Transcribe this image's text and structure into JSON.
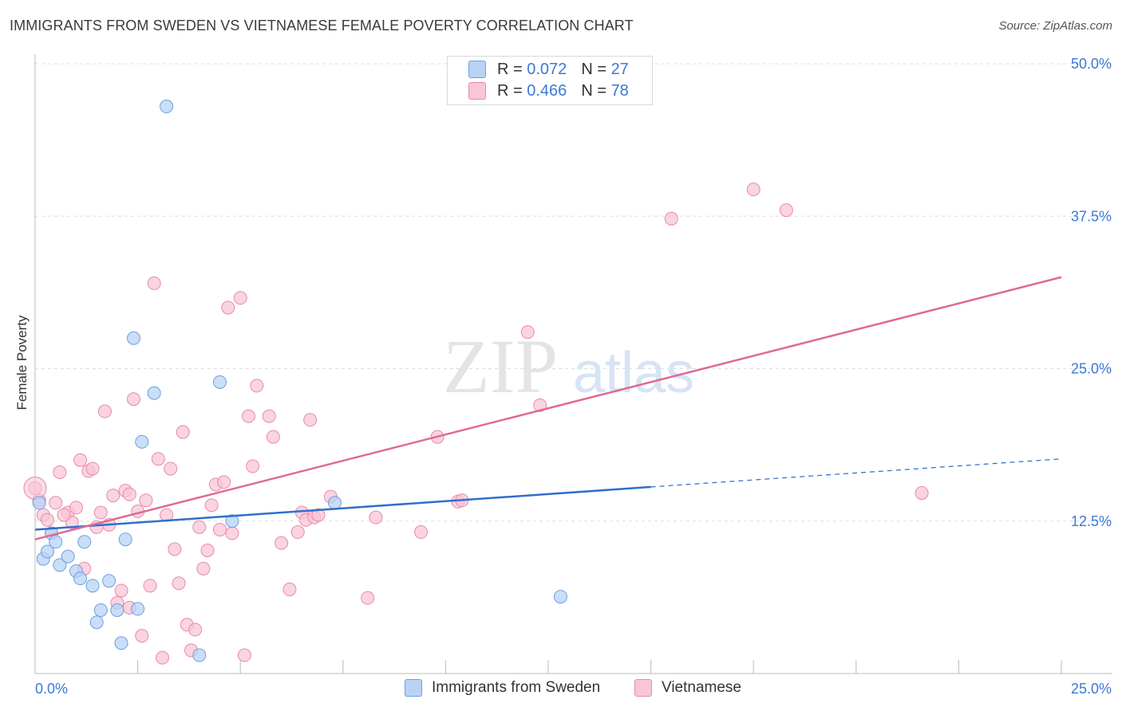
{
  "title": "IMMIGRANTS FROM SWEDEN VS VIETNAMESE FEMALE POVERTY CORRELATION CHART",
  "source": "Source: ZipAtlas.com",
  "watermark": {
    "zip": "ZIP",
    "atlas": "atlas"
  },
  "colors": {
    "sweden_fill": "#b8d3f5",
    "sweden_stroke": "#6d9fe0",
    "sweden_line": "#2f6fcc",
    "viet_fill": "#f8c6d6",
    "viet_stroke": "#e88aa8",
    "viet_line": "#e06a94",
    "tick_color": "#3c78d8",
    "grid": "#dddddd"
  },
  "legend": {
    "rows": [
      {
        "r_label": "R = ",
        "r_value": "0.072",
        "n_label": "N = ",
        "n_value": "27"
      },
      {
        "r_label": "R = ",
        "r_value": "0.466",
        "n_label": "N = ",
        "n_value": "78"
      }
    ]
  },
  "bottom_legend": [
    "Immigrants from Sweden",
    "Vietnamese"
  ],
  "chart_data": {
    "type": "scatter",
    "title": "IMMIGRANTS FROM SWEDEN VS VIETNAMESE FEMALE POVERTY CORRELATION CHART",
    "xlabel": "",
    "ylabel": "Female Poverty",
    "xlim": [
      0,
      25
    ],
    "ylim": [
      0,
      50
    ],
    "x_tick_labels": [
      "0.0%",
      "25.0%"
    ],
    "y_ticks": [
      12.5,
      25.0,
      37.5,
      50.0
    ],
    "y_tick_labels": [
      "12.5%",
      "25.0%",
      "37.5%",
      "50.0%"
    ],
    "series": [
      {
        "name": "Immigrants from Sweden",
        "trend": {
          "x": [
            0,
            15
          ],
          "y": [
            11.8,
            15.3
          ],
          "dashed_to": [
            25,
            17.6
          ]
        },
        "points": [
          [
            0.1,
            14.0
          ],
          [
            0.2,
            9.4
          ],
          [
            0.3,
            10.0
          ],
          [
            0.4,
            11.5
          ],
          [
            0.5,
            10.8
          ],
          [
            0.6,
            8.9
          ],
          [
            0.8,
            9.6
          ],
          [
            1.0,
            8.4
          ],
          [
            1.1,
            7.8
          ],
          [
            1.2,
            10.8
          ],
          [
            1.4,
            7.2
          ],
          [
            1.5,
            4.2
          ],
          [
            1.6,
            5.2
          ],
          [
            1.8,
            7.6
          ],
          [
            2.0,
            5.2
          ],
          [
            2.1,
            2.5
          ],
          [
            2.2,
            11.0
          ],
          [
            2.4,
            27.5
          ],
          [
            2.6,
            19.0
          ],
          [
            2.9,
            23.0
          ],
          [
            3.2,
            46.5
          ],
          [
            4.0,
            1.5
          ],
          [
            4.5,
            23.9
          ],
          [
            4.8,
            12.5
          ],
          [
            7.3,
            14.0
          ],
          [
            2.5,
            5.3
          ],
          [
            12.8,
            6.3
          ]
        ]
      },
      {
        "name": "Vietnamese",
        "trend": {
          "x": [
            0,
            25
          ],
          "y": [
            11.0,
            32.5
          ]
        },
        "points": [
          [
            0.0,
            15.2
          ],
          [
            0.1,
            14.2
          ],
          [
            0.2,
            13.0
          ],
          [
            0.3,
            12.6
          ],
          [
            0.4,
            11.5
          ],
          [
            0.5,
            14.0
          ],
          [
            0.6,
            16.5
          ],
          [
            0.8,
            13.2
          ],
          [
            0.9,
            12.4
          ],
          [
            1.0,
            13.6
          ],
          [
            1.1,
            17.5
          ],
          [
            1.2,
            8.6
          ],
          [
            1.3,
            16.6
          ],
          [
            1.4,
            16.8
          ],
          [
            1.5,
            12.0
          ],
          [
            1.6,
            13.2
          ],
          [
            1.7,
            21.5
          ],
          [
            1.8,
            12.2
          ],
          [
            1.9,
            14.6
          ],
          [
            2.0,
            5.8
          ],
          [
            2.1,
            6.8
          ],
          [
            2.2,
            15.0
          ],
          [
            2.3,
            5.4
          ],
          [
            2.4,
            22.5
          ],
          [
            2.5,
            13.3
          ],
          [
            2.6,
            3.1
          ],
          [
            2.7,
            14.2
          ],
          [
            2.8,
            7.2
          ],
          [
            2.9,
            32.0
          ],
          [
            3.0,
            17.6
          ],
          [
            3.1,
            1.3
          ],
          [
            3.2,
            13.0
          ],
          [
            3.3,
            16.8
          ],
          [
            3.4,
            10.2
          ],
          [
            3.5,
            7.4
          ],
          [
            3.6,
            19.8
          ],
          [
            3.7,
            4.0
          ],
          [
            3.8,
            1.9
          ],
          [
            3.9,
            3.6
          ],
          [
            4.0,
            12.0
          ],
          [
            4.1,
            8.6
          ],
          [
            4.2,
            10.1
          ],
          [
            4.3,
            13.8
          ],
          [
            4.4,
            15.5
          ],
          [
            4.5,
            11.8
          ],
          [
            4.6,
            15.7
          ],
          [
            4.7,
            30.0
          ],
          [
            4.8,
            11.5
          ],
          [
            5.0,
            30.8
          ],
          [
            5.1,
            1.5
          ],
          [
            5.2,
            21.1
          ],
          [
            5.3,
            17.0
          ],
          [
            5.4,
            23.6
          ],
          [
            5.7,
            21.1
          ],
          [
            5.8,
            19.4
          ],
          [
            6.0,
            10.7
          ],
          [
            6.2,
            6.9
          ],
          [
            6.4,
            11.6
          ],
          [
            6.5,
            13.2
          ],
          [
            6.6,
            12.6
          ],
          [
            6.7,
            20.8
          ],
          [
            6.8,
            12.8
          ],
          [
            6.9,
            13.0
          ],
          [
            7.2,
            14.5
          ],
          [
            8.1,
            6.2
          ],
          [
            8.3,
            12.8
          ],
          [
            9.4,
            11.6
          ],
          [
            9.8,
            19.4
          ],
          [
            10.3,
            14.1
          ],
          [
            10.4,
            14.2
          ],
          [
            12.0,
            28.0
          ],
          [
            12.3,
            22.0
          ],
          [
            15.5,
            37.3
          ],
          [
            17.5,
            39.7
          ],
          [
            18.3,
            38.0
          ],
          [
            21.6,
            14.8
          ],
          [
            2.3,
            14.7
          ],
          [
            0.7,
            13.0
          ]
        ]
      }
    ]
  },
  "y_axis_label": "Female Poverty"
}
